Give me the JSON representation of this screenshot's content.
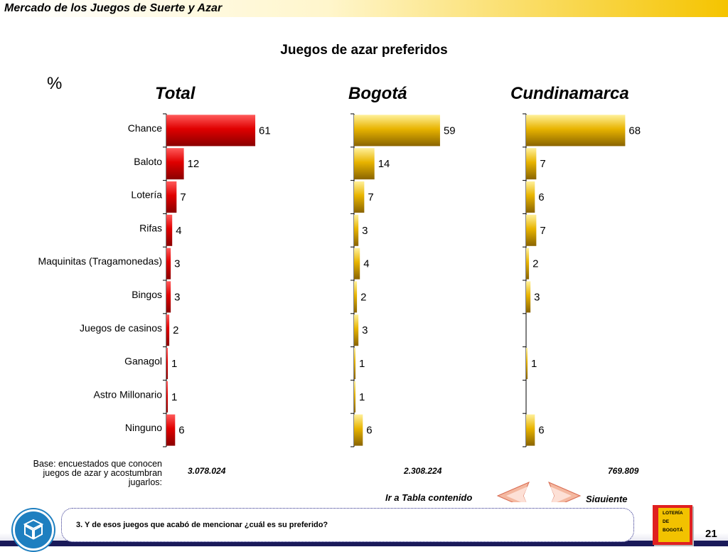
{
  "header": {
    "title": "Mercado de los Juegos de Suerte y Azar"
  },
  "page": {
    "title": "Juegos de azar preferidos",
    "unit": "%",
    "number": "21"
  },
  "chart_data": {
    "type": "bar",
    "orientation": "horizontal",
    "categories": [
      "Chance",
      "Baloto",
      "Lotería",
      "Rifas",
      "Maquinitas (Tragamonedas)",
      "Bingos",
      "Juegos de casinos",
      "Ganagol",
      "Astro Millonario",
      "Ninguno"
    ],
    "series": [
      {
        "name": "Total",
        "values": [
          61,
          12,
          7,
          4,
          3,
          3,
          2,
          1,
          1,
          6
        ],
        "color": "#e00000"
      },
      {
        "name": "Bogotá",
        "values": [
          59,
          14,
          7,
          3,
          4,
          2,
          3,
          1,
          1,
          6
        ],
        "color": "#e8b400"
      },
      {
        "name": "Cundinamarca",
        "values": [
          68,
          7,
          6,
          7,
          2,
          3,
          null,
          1,
          null,
          6
        ],
        "color": "#e8b400"
      }
    ],
    "xlim": [
      0,
      100
    ],
    "grid": false,
    "legend": "none"
  },
  "base": {
    "label": "Base: encuestados que conocen juegos de azar y acostumbran jugarlos:",
    "values": [
      "3.078.024",
      "2.308.224",
      "769.809"
    ]
  },
  "nav": {
    "table_link": "Ir a Tabla contenido",
    "next": "Siguiente"
  },
  "footer": {
    "question": "3. Y de esos juegos que acabó de mencionar ¿cuál es su preferido?",
    "logo_lines": [
      "LOTERÍA",
      "DE",
      "BOGOTÁ"
    ]
  }
}
